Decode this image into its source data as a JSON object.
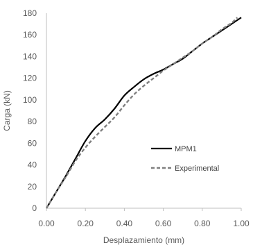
{
  "chart_data": {
    "type": "line",
    "xlabel": "Desplazamiento (mm)",
    "ylabel": "Carga (kN)",
    "xlim": [
      0,
      1
    ],
    "ylim": [
      0,
      180
    ],
    "x_ticks": [
      "0.00",
      "0.20",
      "0.40",
      "0.60",
      "0.80",
      "1.00"
    ],
    "y_ticks": [
      "0",
      "20",
      "40",
      "60",
      "80",
      "100",
      "120",
      "140",
      "160",
      "180"
    ],
    "grid": false,
    "legend_position": "right",
    "series": [
      {
        "name": "MPM1",
        "color": "#000000",
        "style": "solid",
        "x": [
          0.0,
          0.05,
          0.1,
          0.15,
          0.2,
          0.25,
          0.3,
          0.35,
          0.4,
          0.45,
          0.5,
          0.55,
          0.6,
          0.65,
          0.7,
          0.75,
          0.8,
          0.85,
          0.9,
          0.95,
          1.0
        ],
        "y": [
          0,
          15,
          30,
          46,
          62,
          74,
          82,
          92,
          104,
          112,
          119,
          124,
          128,
          133,
          138,
          145,
          152,
          158,
          164,
          170,
          176
        ]
      },
      {
        "name": "Experimental",
        "color": "#808080",
        "style": "dashed",
        "x": [
          0.0,
          0.05,
          0.1,
          0.15,
          0.2,
          0.25,
          0.3,
          0.35,
          0.4,
          0.45,
          0.5,
          0.55,
          0.6,
          0.65,
          0.7,
          0.75,
          0.8,
          0.85,
          0.9,
          0.95,
          0.98
        ],
        "y": [
          0,
          15,
          29,
          44,
          56,
          66,
          75,
          84,
          95,
          105,
          113,
          120,
          127,
          133,
          139,
          145,
          152,
          158,
          165,
          171,
          176
        ]
      }
    ]
  }
}
